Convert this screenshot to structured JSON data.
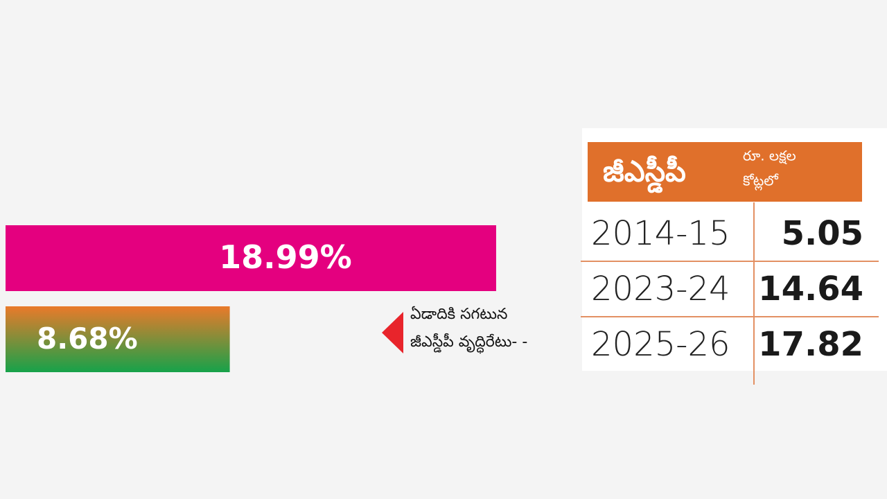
{
  "chart_data": [
    {
      "type": "bar",
      "categories": [
        null,
        null
      ],
      "values": [
        18.99,
        8.68
      ],
      "value_labels": [
        "18.99%",
        "8.68%"
      ],
      "colors": [
        "#e4007f",
        [
          "#ea7a2a",
          "#16a24a"
        ]
      ],
      "annotation": [
        "ఏడాదికి సగటున",
        "జీఎస్డీపీ వృద్ధిరేటు- -"
      ]
    },
    {
      "type": "table",
      "title": "జీఎస్డీపీ",
      "unit": [
        "రూ. లక్షల",
        "కోట్లలో"
      ],
      "rows": [
        [
          "2014-15",
          5.05
        ],
        [
          "2023-24",
          14.64
        ],
        [
          "2025-26",
          17.82
        ]
      ]
    }
  ]
}
